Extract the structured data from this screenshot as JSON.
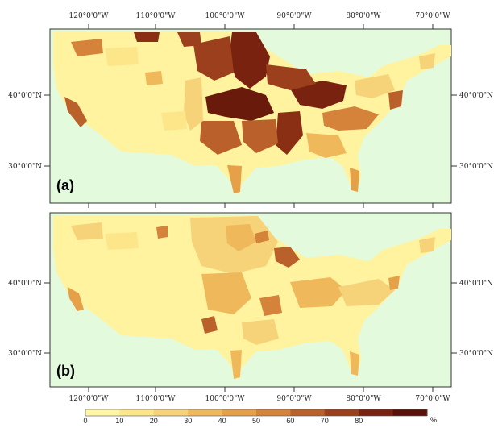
{
  "figure": {
    "top_lon_ticks": [
      "120°0'0\"W",
      "110°0'0\"W",
      "100°0'0\"W",
      "90°0'0\"W",
      "80°0'0\"W",
      "70°0'0\"W"
    ],
    "bottom_lon_ticks": [
      "120°0'0\"W",
      "110°0'0\"W",
      "100°0'0\"W",
      "90°0'0\"W",
      "80°0'0\"W",
      "70°0'0\"W"
    ],
    "lat_ticks": [
      "40°0'0\"N",
      "30°0'0\"N"
    ],
    "panels": [
      {
        "id": "a",
        "label": "(a)"
      },
      {
        "id": "b",
        "label": "(b)"
      }
    ]
  },
  "legend": {
    "unit": "%",
    "ticks": [
      "0",
      "10",
      "20",
      "30",
      "40",
      "50",
      "60",
      "70",
      "80"
    ],
    "colors": [
      "#fff7a3",
      "#fde58a",
      "#f6d278",
      "#efb95b",
      "#e5a048",
      "#d5823a",
      "#b9602b",
      "#9b3f1c",
      "#7a2210",
      "#5a1208"
    ]
  },
  "colors": {
    "ocean": "#e3fadd",
    "land_low": "#fff3a0",
    "border": "#333333"
  }
}
